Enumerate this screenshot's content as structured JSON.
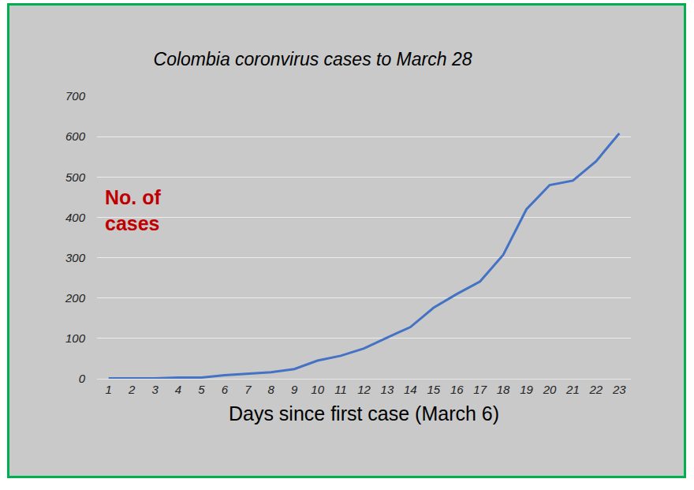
{
  "chart_data": {
    "type": "line",
    "title": "Colombia coronvirus cases to March 28",
    "x_label": "Days since first case (March 6)",
    "annotations": [
      "No. of\ncases"
    ],
    "x": [
      1,
      2,
      3,
      4,
      5,
      6,
      7,
      8,
      9,
      10,
      11,
      12,
      13,
      14,
      15,
      16,
      17,
      18,
      19,
      20,
      21,
      22,
      23
    ],
    "values": [
      1,
      1,
      1,
      3,
      3,
      9,
      13,
      16,
      24,
      45,
      57,
      75,
      102,
      128,
      176,
      210,
      241,
      307,
      420,
      480,
      491,
      539,
      608
    ],
    "color": "#4472c4",
    "xlim": [
      0.5,
      23.5
    ],
    "xticks": [
      1,
      2,
      3,
      4,
      5,
      6,
      7,
      8,
      9,
      10,
      11,
      12,
      13,
      14,
      15,
      16,
      17,
      18,
      19,
      20,
      21,
      22,
      23
    ],
    "ylim": [
      0,
      700
    ],
    "yticks": [
      0,
      100,
      200,
      300,
      400,
      500,
      600,
      700
    ],
    "grid": true
  }
}
